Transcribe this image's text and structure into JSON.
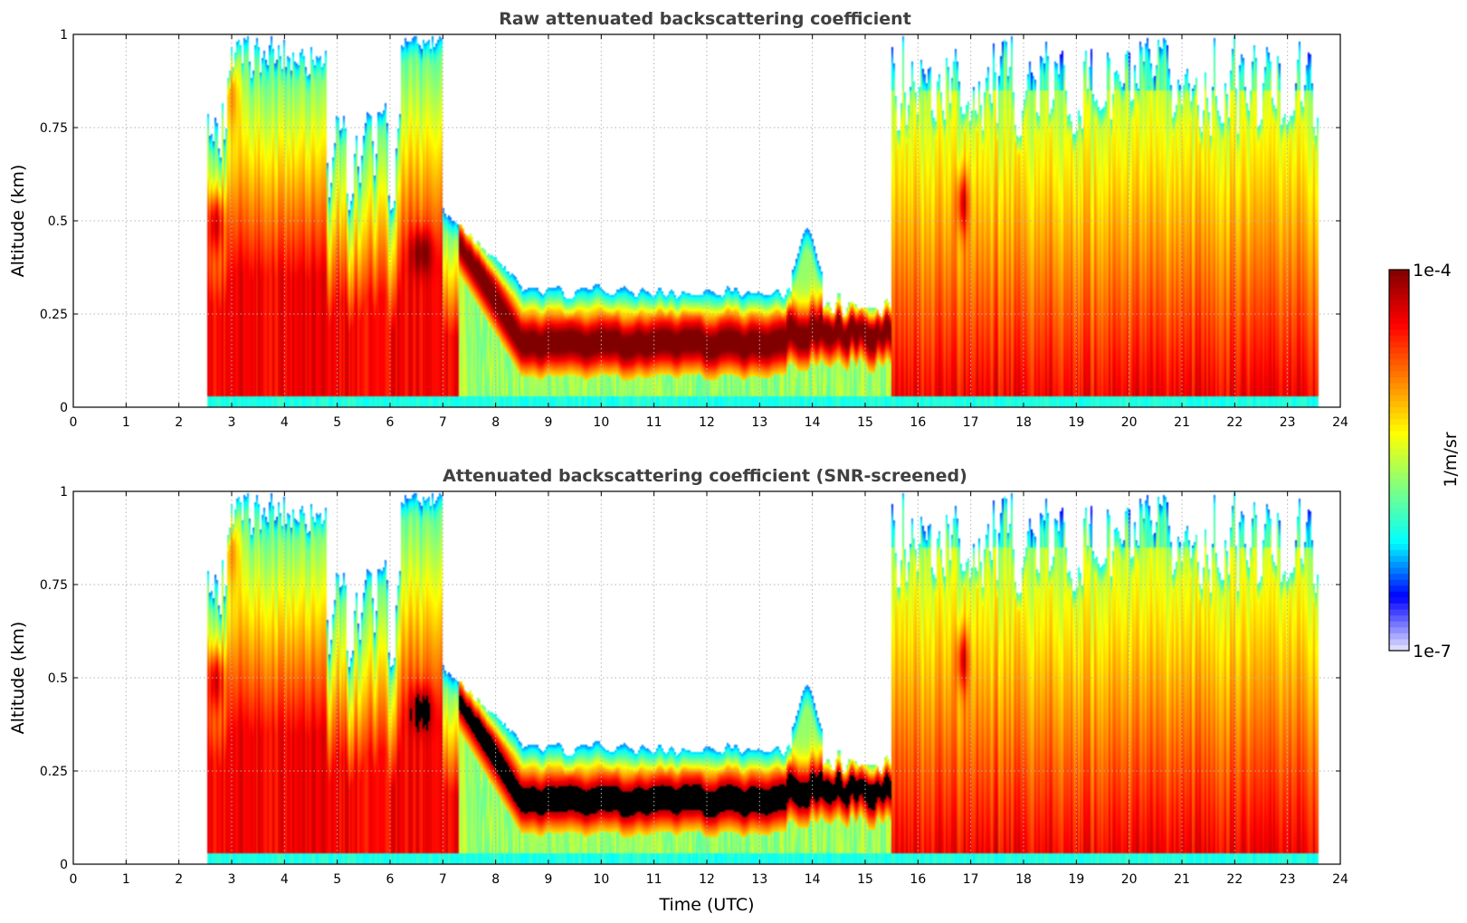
{
  "colors": {
    "background": "#ffffff",
    "title": "#404040",
    "screened": "#000000"
  },
  "colormap_stops": [
    "#e8e8ff",
    "#0000ff",
    "#00ffff",
    "#80ff80",
    "#ffff00",
    "#ff8000",
    "#ff0000",
    "#800000"
  ],
  "chart_data": [
    {
      "id": "raw",
      "type": "heatmap",
      "title": "Raw attenuated backscattering coefficient",
      "xlabel": "",
      "ylabel": "Altitude (km)",
      "xlim": [
        0,
        24
      ],
      "ylim": [
        0,
        1
      ],
      "xticks": [
        "0",
        "1",
        "2",
        "3",
        "4",
        "5",
        "6",
        "7",
        "8",
        "9",
        "10",
        "11",
        "12",
        "13",
        "14",
        "15",
        "16",
        "17",
        "18",
        "19",
        "20",
        "21",
        "22",
        "23",
        "24"
      ],
      "yticks": [
        "0",
        "0.25",
        "0.5",
        "0.75",
        "1"
      ],
      "grid": true,
      "screened": false,
      "data_start_hour": 2.55,
      "data_end_hour": 23.6
    },
    {
      "id": "screened",
      "type": "heatmap",
      "title": "Attenuated backscattering coefficient (SNR-screened)",
      "xlabel": "Time (UTC)",
      "ylabel": "Altitude (km)",
      "xlim": [
        0,
        24
      ],
      "ylim": [
        0,
        1
      ],
      "xticks": [
        "0",
        "1",
        "2",
        "3",
        "4",
        "5",
        "6",
        "7",
        "8",
        "9",
        "10",
        "11",
        "12",
        "13",
        "14",
        "15",
        "16",
        "17",
        "18",
        "19",
        "20",
        "21",
        "22",
        "23",
        "24"
      ],
      "yticks": [
        "0",
        "0.25",
        "0.5",
        "0.75",
        "1"
      ],
      "grid": true,
      "screened": true,
      "data_start_hour": 2.55,
      "data_end_hour": 23.6
    }
  ],
  "colorbar": {
    "max_label": "1e-4",
    "min_label": "1e-7",
    "unit_label": "1/m/sr",
    "scale": "log",
    "range": [
      1e-07,
      0.0001
    ]
  }
}
